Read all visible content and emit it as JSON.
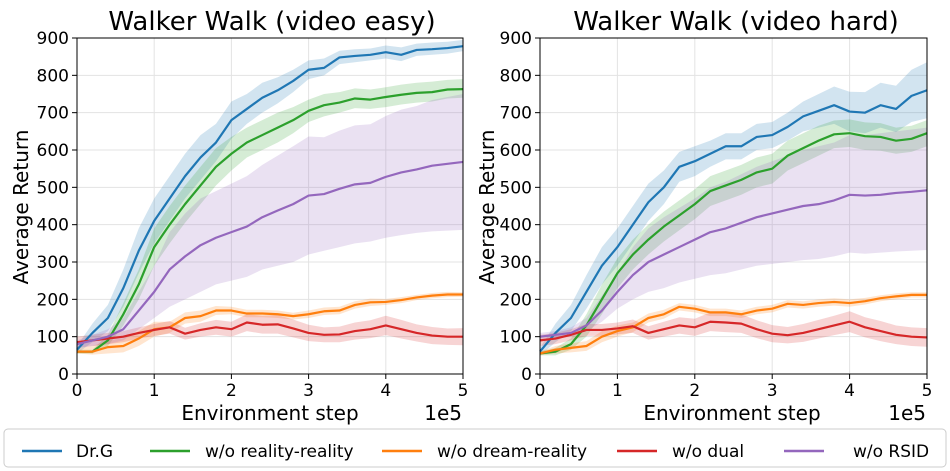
{
  "colors": {
    "Dr.G": "#1f77b4",
    "w/o reality-reality": "#2ca02c",
    "w/o dream-reality": "#ff7f0e",
    "w/o dual": "#d62728",
    "w/o RSID": "#9467bd"
  },
  "legend": {
    "placement": "bottom",
    "items": [
      "Dr.G",
      "w/o reality-reality",
      "w/o dream-reality",
      "w/o dual",
      "w/o RSID"
    ]
  },
  "chart_data": [
    {
      "type": "line",
      "title": "Walker Walk (video easy)",
      "xlabel": "Environment step",
      "ylabel": "Average Return",
      "x_offset_label": "1e5",
      "xlim": [
        0,
        5
      ],
      "ylim": [
        0,
        900
      ],
      "xticks": [
        0,
        1,
        2,
        3,
        4,
        5
      ],
      "yticks": [
        0,
        100,
        200,
        300,
        400,
        500,
        600,
        700,
        800,
        900
      ],
      "grid": true,
      "x": [
        0,
        0.2,
        0.4,
        0.6,
        0.8,
        1.0,
        1.2,
        1.4,
        1.6,
        1.8,
        2.0,
        2.2,
        2.4,
        2.6,
        2.8,
        3.0,
        3.2,
        3.4,
        3.6,
        3.8,
        4.0,
        4.2,
        4.4,
        4.6,
        4.8,
        5.0
      ],
      "series": [
        {
          "name": "Dr.G",
          "values": [
            65,
            110,
            150,
            230,
            330,
            410,
            470,
            530,
            580,
            620,
            680,
            710,
            740,
            760,
            785,
            815,
            820,
            848,
            852,
            855,
            862,
            855,
            868,
            870,
            873,
            878
          ],
          "lower": [
            55,
            85,
            115,
            180,
            270,
            350,
            410,
            470,
            520,
            570,
            630,
            670,
            700,
            725,
            755,
            790,
            800,
            830,
            835,
            840,
            845,
            838,
            852,
            855,
            858,
            865
          ],
          "upper": [
            75,
            135,
            185,
            280,
            390,
            470,
            530,
            590,
            640,
            670,
            730,
            750,
            780,
            795,
            815,
            840,
            845,
            866,
            870,
            872,
            880,
            875,
            885,
            888,
            890,
            895
          ]
        },
        {
          "name": "w/o reality-reality",
          "values": [
            60,
            60,
            90,
            160,
            240,
            340,
            400,
            455,
            505,
            555,
            590,
            620,
            640,
            660,
            680,
            705,
            720,
            727,
            738,
            735,
            742,
            748,
            753,
            755,
            762,
            763
          ],
          "lower": [
            55,
            55,
            75,
            130,
            200,
            290,
            350,
            405,
            455,
            505,
            545,
            580,
            600,
            620,
            645,
            675,
            690,
            700,
            712,
            710,
            715,
            722,
            727,
            730,
            738,
            740
          ],
          "upper": [
            65,
            65,
            105,
            190,
            280,
            390,
            450,
            505,
            555,
            605,
            635,
            660,
            680,
            700,
            715,
            735,
            750,
            755,
            765,
            762,
            768,
            775,
            780,
            783,
            788,
            790
          ]
        },
        {
          "name": "w/o dream-reality",
          "values": [
            60,
            60,
            72,
            75,
            95,
            120,
            125,
            150,
            155,
            170,
            170,
            162,
            162,
            160,
            155,
            160,
            168,
            170,
            185,
            192,
            193,
            198,
            205,
            210,
            213,
            213
          ],
          "lower": [
            55,
            52,
            55,
            58,
            75,
            100,
            110,
            135,
            140,
            158,
            160,
            152,
            152,
            150,
            146,
            150,
            158,
            160,
            175,
            182,
            185,
            190,
            198,
            203,
            206,
            207
          ],
          "upper": [
            70,
            75,
            90,
            95,
            115,
            140,
            140,
            165,
            170,
            182,
            180,
            172,
            172,
            170,
            164,
            170,
            178,
            180,
            195,
            202,
            201,
            206,
            212,
            217,
            220,
            219
          ]
        },
        {
          "name": "w/o dual",
          "values": [
            85,
            90,
            95,
            100,
            110,
            118,
            125,
            108,
            118,
            125,
            120,
            138,
            132,
            133,
            122,
            110,
            105,
            106,
            115,
            120,
            130,
            120,
            110,
            103,
            100,
            100
          ],
          "lower": [
            70,
            75,
            80,
            85,
            95,
            102,
            108,
            92,
            100,
            105,
            100,
            115,
            108,
            108,
            98,
            88,
            85,
            85,
            92,
            96,
            104,
            95,
            87,
            80,
            78,
            77
          ],
          "upper": [
            100,
            105,
            110,
            115,
            125,
            134,
            142,
            124,
            136,
            145,
            140,
            160,
            156,
            158,
            146,
            132,
            125,
            127,
            138,
            144,
            156,
            145,
            133,
            126,
            122,
            123
          ]
        },
        {
          "name": "w/o RSID",
          "values": [
            80,
            90,
            100,
            120,
            170,
            220,
            280,
            315,
            345,
            365,
            380,
            395,
            420,
            438,
            455,
            478,
            482,
            496,
            508,
            512,
            528,
            540,
            548,
            558,
            563,
            568
          ],
          "lower": [
            70,
            75,
            80,
            90,
            120,
            150,
            180,
            200,
            220,
            240,
            250,
            260,
            280,
            290,
            300,
            320,
            330,
            340,
            350,
            355,
            365,
            372,
            378,
            382,
            384,
            386
          ],
          "upper": [
            90,
            105,
            120,
            150,
            220,
            290,
            380,
            430,
            470,
            490,
            510,
            530,
            560,
            585,
            610,
            636,
            634,
            652,
            666,
            669,
            691,
            708,
            718,
            734,
            742,
            750
          ]
        }
      ]
    },
    {
      "type": "line",
      "title": "Walker Walk (video hard)",
      "xlabel": "Environment step",
      "ylabel": "Average Return",
      "x_offset_label": "1e5",
      "xlim": [
        0,
        5
      ],
      "ylim": [
        0,
        900
      ],
      "xticks": [
        0,
        1,
        2,
        3,
        4,
        5
      ],
      "yticks": [
        0,
        100,
        200,
        300,
        400,
        500,
        600,
        700,
        800,
        900
      ],
      "grid": true,
      "x": [
        0,
        0.2,
        0.4,
        0.6,
        0.8,
        1.0,
        1.2,
        1.4,
        1.6,
        1.8,
        2.0,
        2.2,
        2.4,
        2.6,
        2.8,
        3.0,
        3.2,
        3.4,
        3.6,
        3.8,
        4.0,
        4.2,
        4.4,
        4.6,
        4.8,
        5.0
      ],
      "series": [
        {
          "name": "Dr.G",
          "values": [
            60,
            110,
            150,
            220,
            290,
            340,
            400,
            460,
            500,
            555,
            570,
            590,
            610,
            610,
            635,
            640,
            662,
            690,
            705,
            720,
            703,
            700,
            720,
            710,
            745,
            760
          ],
          "lower": [
            50,
            85,
            115,
            175,
            240,
            290,
            350,
            410,
            455,
            515,
            530,
            555,
            575,
            575,
            600,
            605,
            625,
            650,
            660,
            670,
            650,
            645,
            660,
            648,
            675,
            685
          ],
          "upper": [
            70,
            135,
            185,
            265,
            340,
            390,
            450,
            510,
            545,
            595,
            610,
            625,
            645,
            645,
            670,
            675,
            700,
            730,
            750,
            770,
            756,
            755,
            780,
            772,
            815,
            835
          ]
        },
        {
          "name": "w/o reality-reality",
          "values": [
            55,
            60,
            80,
            130,
            200,
            270,
            320,
            360,
            395,
            425,
            455,
            490,
            505,
            520,
            540,
            550,
            585,
            605,
            625,
            642,
            645,
            637,
            635,
            625,
            630,
            645
          ],
          "lower": [
            50,
            50,
            65,
            100,
            160,
            230,
            280,
            320,
            355,
            385,
            415,
            450,
            465,
            480,
            500,
            510,
            545,
            565,
            585,
            605,
            608,
            600,
            598,
            590,
            595,
            610
          ],
          "upper": [
            60,
            70,
            95,
            160,
            240,
            310,
            360,
            400,
            435,
            465,
            495,
            530,
            545,
            560,
            580,
            590,
            625,
            645,
            665,
            679,
            682,
            674,
            672,
            660,
            665,
            680
          ]
        },
        {
          "name": "w/o dream-reality",
          "values": [
            55,
            65,
            70,
            75,
            100,
            115,
            125,
            150,
            160,
            180,
            175,
            165,
            165,
            160,
            170,
            175,
            188,
            185,
            190,
            193,
            190,
            195,
            203,
            208,
            212,
            212
          ],
          "lower": [
            50,
            55,
            58,
            62,
            85,
            100,
            112,
            138,
            148,
            170,
            165,
            155,
            155,
            150,
            160,
            165,
            178,
            175,
            180,
            183,
            180,
            186,
            195,
            200,
            205,
            205
          ],
          "upper": [
            60,
            75,
            82,
            88,
            115,
            130,
            138,
            162,
            172,
            190,
            185,
            175,
            175,
            170,
            180,
            185,
            198,
            195,
            200,
            203,
            200,
            204,
            211,
            216,
            219,
            219
          ]
        },
        {
          "name": "w/o dual",
          "values": [
            90,
            95,
            105,
            118,
            118,
            122,
            128,
            110,
            120,
            130,
            125,
            140,
            138,
            135,
            120,
            108,
            104,
            110,
            120,
            130,
            140,
            125,
            115,
            105,
            100,
            98
          ],
          "lower": [
            75,
            80,
            90,
            102,
            102,
            106,
            110,
            92,
            100,
            108,
            102,
            115,
            112,
            110,
            96,
            85,
            82,
            86,
            95,
            104,
            112,
            98,
            88,
            80,
            75,
            73
          ],
          "upper": [
            105,
            110,
            120,
            134,
            134,
            138,
            146,
            128,
            140,
            152,
            148,
            165,
            164,
            160,
            144,
            131,
            126,
            134,
            145,
            156,
            168,
            152,
            142,
            130,
            125,
            123
          ]
        },
        {
          "name": "w/o RSID",
          "values": [
            100,
            105,
            110,
            130,
            170,
            220,
            265,
            300,
            320,
            340,
            360,
            380,
            390,
            405,
            420,
            430,
            440,
            450,
            455,
            465,
            480,
            478,
            480,
            485,
            488,
            492
          ],
          "lower": [
            90,
            95,
            100,
            115,
            140,
            175,
            200,
            220,
            230,
            245,
            255,
            265,
            270,
            280,
            290,
            295,
            300,
            305,
            308,
            315,
            325,
            322,
            325,
            328,
            330,
            332
          ],
          "upper": [
            110,
            115,
            125,
            150,
            210,
            270,
            340,
            390,
            420,
            445,
            470,
            500,
            515,
            535,
            555,
            570,
            585,
            600,
            610,
            620,
            640,
            640,
            645,
            650,
            655,
            660
          ]
        }
      ]
    }
  ]
}
